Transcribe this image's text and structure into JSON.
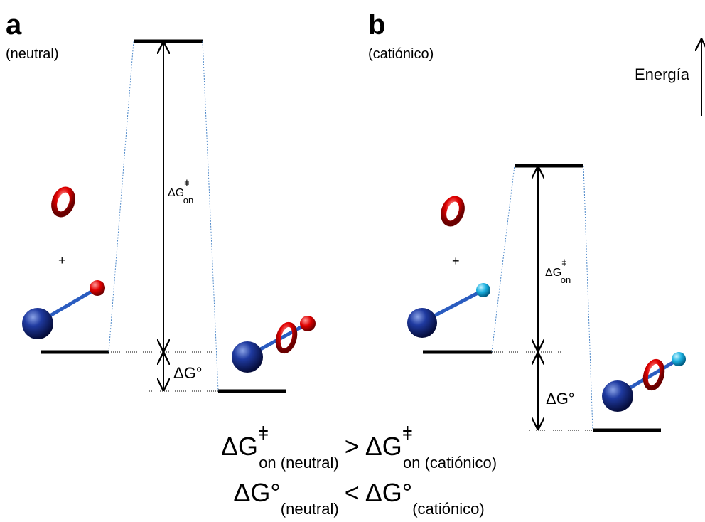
{
  "axis_label": "Energía",
  "panels": [
    {
      "letter": "a",
      "subtitle": "(neutral)",
      "plus": "+",
      "barrier": {
        "symbol": "ΔG",
        "sup": "ǂ",
        "sub": "on"
      },
      "dg_label": "ΔG°"
    },
    {
      "letter": "b",
      "subtitle": "(catiónico)",
      "plus": "+",
      "barrier": {
        "symbol": "ΔG",
        "sup": "ǂ",
        "sub": "on"
      },
      "dg_label": "ΔG°"
    }
  ],
  "equations": [
    {
      "left": "ΔG",
      "left_sup": "ǂ",
      "left_sub": "on (neutral)",
      "op": ">",
      "right": "ΔG",
      "right_sup": "ǂ",
      "right_sub": "on (catiónico)"
    },
    {
      "left": "ΔG°",
      "left_sub": "(neutral)",
      "op": "<",
      "right": "ΔG°",
      "right_sub": "(catiónico)"
    }
  ]
}
